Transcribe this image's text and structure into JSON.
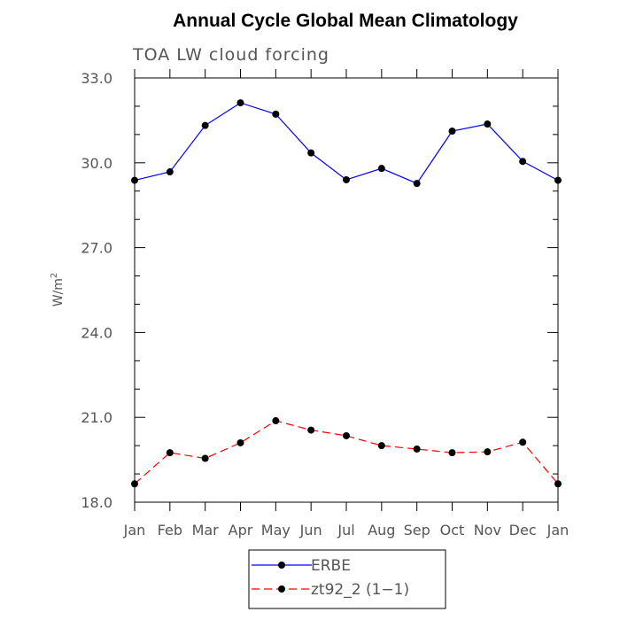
{
  "chart_data": {
    "type": "line",
    "title": "Annual Cycle Global Mean Climatology",
    "subtitle": "TOA LW cloud forcing",
    "ylabel": "W/m",
    "ylabel_sup": "2",
    "xlabel": "",
    "categories": [
      "Jan",
      "Feb",
      "Mar",
      "Apr",
      "May",
      "Jun",
      "Jul",
      "Aug",
      "Sep",
      "Oct",
      "Nov",
      "Dec",
      "Jan"
    ],
    "ylim": [
      18.0,
      33.0
    ],
    "yticks": [
      "18.0",
      "21.0",
      "24.0",
      "27.0",
      "30.0",
      "33.0"
    ],
    "grid": false,
    "legend_position": "bottom-center",
    "series": [
      {
        "name": "ERBE",
        "color": "#0000ff",
        "dash": "solid",
        "marker": "filled-circle",
        "values": [
          29.38,
          29.68,
          31.32,
          32.12,
          31.72,
          30.35,
          29.4,
          29.8,
          29.27,
          31.12,
          31.37,
          30.05,
          29.38
        ]
      },
      {
        "name": "zt92_2 (1−1)",
        "color": "#ff0000",
        "dash": "dashed",
        "marker": "filled-circle",
        "values": [
          18.65,
          19.75,
          19.55,
          20.1,
          20.88,
          20.55,
          20.35,
          20.0,
          19.88,
          19.75,
          19.78,
          20.12,
          18.65
        ]
      }
    ]
  }
}
